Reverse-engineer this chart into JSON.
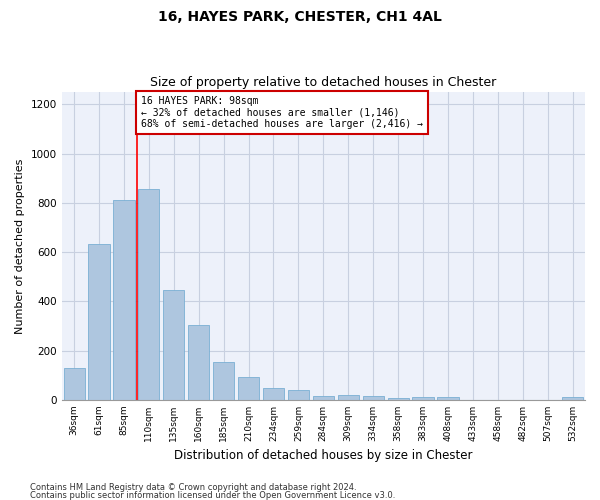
{
  "title1": "16, HAYES PARK, CHESTER, CH1 4AL",
  "title2": "Size of property relative to detached houses in Chester",
  "xlabel": "Distribution of detached houses by size in Chester",
  "ylabel": "Number of detached properties",
  "categories": [
    "36sqm",
    "61sqm",
    "85sqm",
    "110sqm",
    "135sqm",
    "160sqm",
    "185sqm",
    "210sqm",
    "234sqm",
    "259sqm",
    "284sqm",
    "309sqm",
    "334sqm",
    "358sqm",
    "383sqm",
    "408sqm",
    "433sqm",
    "458sqm",
    "482sqm",
    "507sqm",
    "532sqm"
  ],
  "values": [
    130,
    635,
    810,
    855,
    445,
    305,
    155,
    95,
    50,
    40,
    15,
    20,
    15,
    8,
    10,
    10,
    0,
    0,
    0,
    0,
    10
  ],
  "bar_color": "#aec6df",
  "bar_edge_color": "#7aafd4",
  "grid_color": "#c8d0e0",
  "bg_color": "#edf1fa",
  "annotation_text": "16 HAYES PARK: 98sqm\n← 32% of detached houses are smaller (1,146)\n68% of semi-detached houses are larger (2,416) →",
  "annotation_box_color": "#cc0000",
  "footer1": "Contains HM Land Registry data © Crown copyright and database right 2024.",
  "footer2": "Contains public sector information licensed under the Open Government Licence v3.0.",
  "ylim": [
    0,
    1250
  ],
  "yticks": [
    0,
    200,
    400,
    600,
    800,
    1000,
    1200
  ],
  "red_line_index": 2.52
}
